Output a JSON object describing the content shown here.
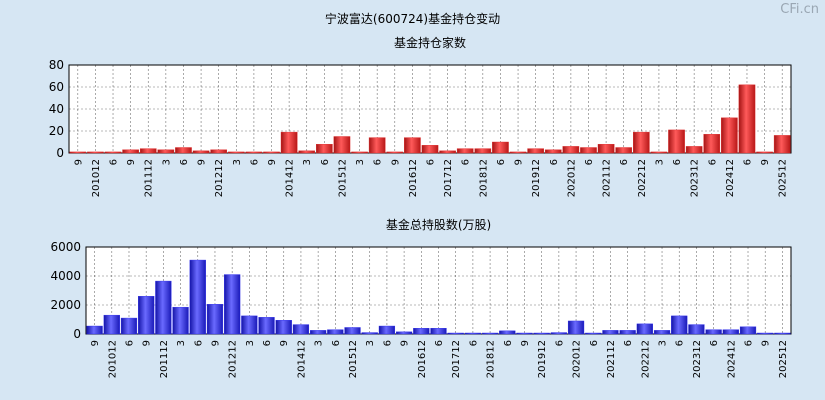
{
  "page": {
    "title": "宁波富达(600724)基金持仓变动",
    "watermark": "CFi.cn"
  },
  "chart_data": [
    {
      "type": "bar",
      "title": "基金持仓家数",
      "ylim": [
        0,
        80
      ],
      "yticks": [
        0,
        20,
        40,
        60,
        80
      ],
      "grid": true,
      "color": "#e02828",
      "categories": [
        "9",
        "201012",
        "6",
        "9",
        "201112",
        "3",
        "6",
        "9",
        "201212",
        "3",
        "6",
        "9",
        "201412",
        "3",
        "6",
        "201512",
        "3",
        "6",
        "9",
        "201612",
        "6",
        "201712",
        "6",
        "201812",
        "6",
        "9",
        "201912",
        "6",
        "202012",
        "6",
        "202112",
        "6",
        "202212",
        "3",
        "6",
        "202312",
        "6",
        "202412",
        "6",
        "9",
        "202512"
      ],
      "values": [
        1,
        1,
        1,
        3,
        4,
        3,
        5,
        2,
        3,
        1,
        1,
        1,
        19,
        2,
        8,
        15,
        1,
        14,
        1,
        14,
        7,
        2,
        4,
        4,
        10,
        1,
        4,
        3,
        6,
        5,
        8,
        5,
        19,
        1,
        21,
        6,
        17,
        32,
        62,
        1,
        16
      ]
    },
    {
      "type": "bar",
      "title": "基金总持股数(万股)",
      "ylim": [
        0,
        6000
      ],
      "yticks": [
        0,
        2000,
        4000,
        6000
      ],
      "grid": true,
      "color": "#2c2cf0",
      "categories": [
        "9",
        "201012",
        "6",
        "9",
        "201112",
        "3",
        "6",
        "9",
        "201212",
        "3",
        "6",
        "9",
        "201412",
        "3",
        "6",
        "201512",
        "3",
        "6",
        "9",
        "201612",
        "6",
        "201712",
        "6",
        "201812",
        "6",
        "9",
        "201912",
        "6",
        "202012",
        "6",
        "202112",
        "6",
        "202212",
        "3",
        "6",
        "202312",
        "6",
        "202412",
        "6",
        "9",
        "202512"
      ],
      "values": [
        550,
        1300,
        1100,
        2600,
        3650,
        1850,
        5100,
        2050,
        4100,
        1250,
        1150,
        950,
        650,
        250,
        300,
        450,
        100,
        550,
        150,
        400,
        400,
        30,
        30,
        30,
        220,
        30,
        30,
        100,
        900,
        30,
        250,
        250,
        700,
        250,
        1250,
        650,
        300,
        300,
        500,
        30,
        30
      ]
    }
  ]
}
